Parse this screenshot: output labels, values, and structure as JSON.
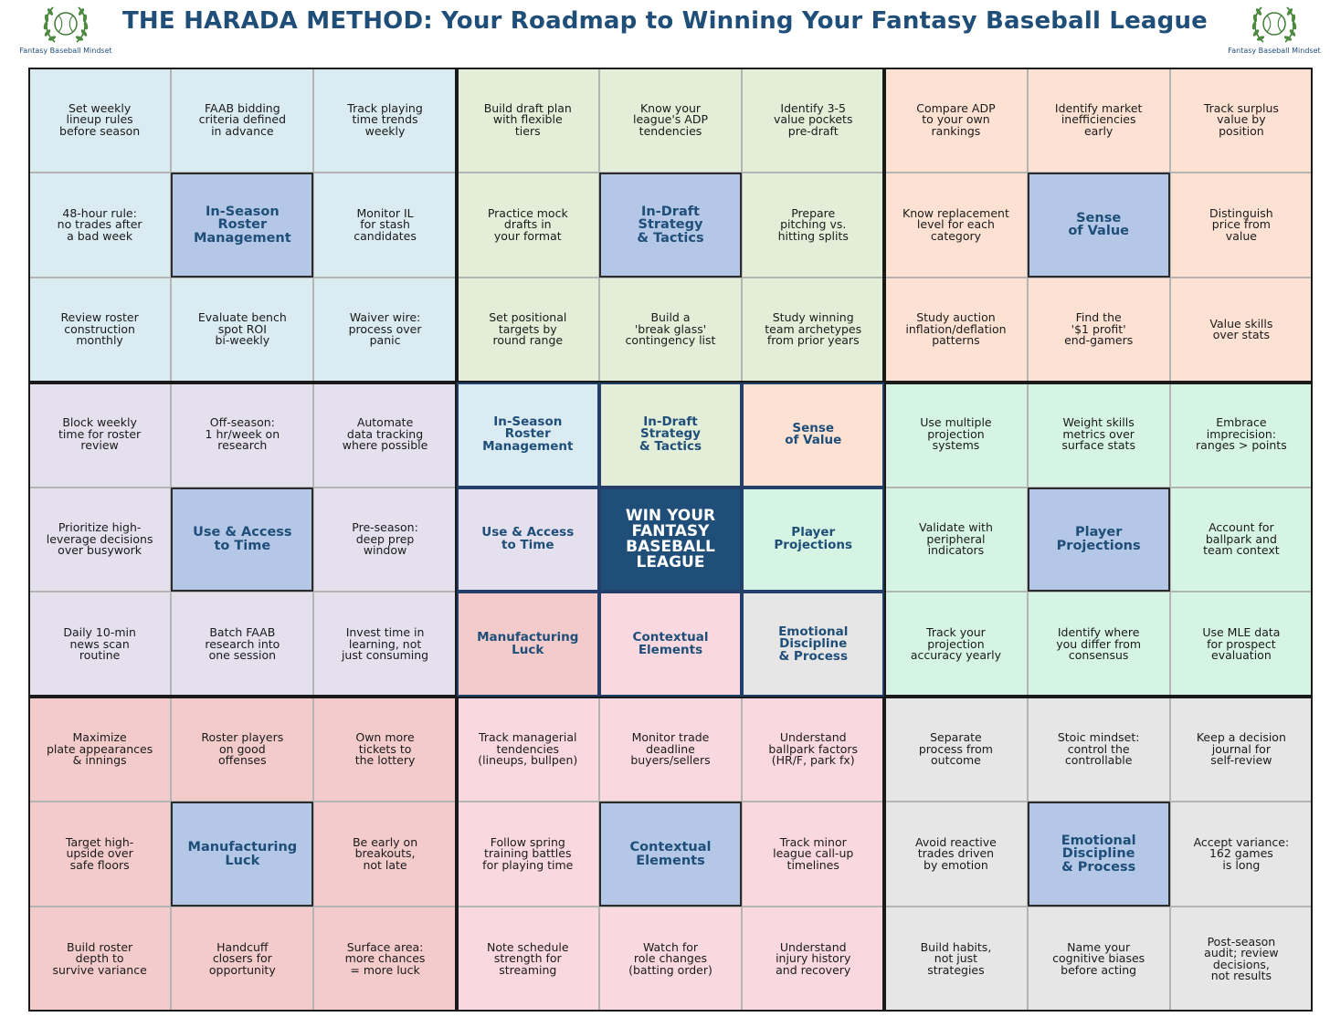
{
  "title": "THE HARADA METHOD: Your Roadmap to Winning Your Fantasy Baseball League",
  "logo": {
    "text": "Fantasy Baseball Mindset",
    "icon": "baseball-laurel-icon"
  },
  "colors": {
    "title": "#1f4e79",
    "goal_cell": "#b4c7e7",
    "main_goal": "#1f4e79",
    "roster": "#daebf2",
    "draft": "#e2eed8",
    "value": "#fde2d4",
    "time": "#e4e0ee",
    "projections": "#d6f4e3",
    "luck": "#f3cbcb",
    "contextual": "#f9d9df",
    "emotional": "#e6e6e6"
  },
  "grid": {
    "rows": [
      [
        "Set weekly\nlineup rules\nbefore season",
        "FAAB bidding\ncriteria defined\nin advance",
        "Track playing\ntime trends\nweekly",
        "Build draft plan\nwith flexible\ntiers",
        "Know your\nleague's ADP\ntendencies",
        "Identify 3-5\nvalue pockets\npre-draft",
        "Compare ADP\nto your own\nrankings",
        "Identify market\ninefficiencies\nearly",
        "Track surplus\nvalue by\nposition"
      ],
      [
        "48-hour rule:\nno trades after\na bad week",
        "In-Season\nRoster\nManagement",
        "Monitor IL\nfor stash\ncandidates",
        "Practice mock\ndrafts in\nyour format",
        "In-Draft\nStrategy\n& Tactics",
        "Prepare\npitching vs.\nhitting splits",
        "Know replacement\nlevel for each\ncategory",
        "Sense\nof Value",
        "Distinguish\nprice from\nvalue"
      ],
      [
        "Review roster\nconstruction\nmonthly",
        "Evaluate bench\nspot ROI\nbi-weekly",
        "Waiver wire:\nprocess over\npanic",
        "Set positional\ntargets by\nround range",
        "Build a\n'break glass'\ncontingency list",
        "Study winning\nteam archetypes\nfrom prior years",
        "Study auction\ninflation/deflation\npatterns",
        "Find the\n'$1 profit'\nend-gamers",
        "Value skills\nover stats"
      ],
      [
        "Block weekly\ntime for roster\nreview",
        "Off-season:\n1 hr/week on\nresearch",
        "Automate\ndata tracking\nwhere possible",
        "In-Season\nRoster\nManagement",
        "In-Draft\nStrategy\n& Tactics",
        "Sense\nof Value",
        "Use multiple\nprojection\nsystems",
        "Weight skills\nmetrics over\nsurface stats",
        "Embrace\nimprecision:\nranges > points"
      ],
      [
        "Prioritize high-\nleverage decisions\nover busywork",
        "Use & Access\nto Time",
        "Pre-season:\ndeep prep\nwindow",
        "Use & Access\nto Time",
        "WIN YOUR\nFANTASY\nBASEBALL\nLEAGUE",
        "Player\nProjections",
        "Validate with\nperipheral\nindicators",
        "Player\nProjections",
        "Account for\nballpark and\nteam context"
      ],
      [
        "Daily 10-min\nnews scan\nroutine",
        "Batch FAAB\nresearch into\none session",
        "Invest time in\nlearning, not\njust consuming",
        "Manufacturing\nLuck",
        "Contextual\nElements",
        "Emotional\nDiscipline\n& Process",
        "Track your\nprojection\naccuracy yearly",
        "Identify where\nyou differ from\nconsensus",
        "Use MLE data\nfor prospect\nevaluation"
      ],
      [
        "Maximize\nplate appearances\n& innings",
        "Roster players\non good\noffenses",
        "Own more\ntickets to\nthe lottery",
        "Track managerial\ntendencies\n(lineups, bullpen)",
        "Monitor trade\ndeadline\nbuyers/sellers",
        "Understand\nballpark factors\n(HR/F, park fx)",
        "Separate\nprocess from\noutcome",
        "Stoic mindset:\ncontrol the\ncontrollable",
        "Keep a decision\njournal for\nself-review"
      ],
      [
        "Target high-\nupside over\nsafe floors",
        "Manufacturing\nLuck",
        "Be early on\nbreakouts,\nnot late",
        "Follow spring\ntraining battles\nfor playing time",
        "Contextual\nElements",
        "Track minor\nleague call-up\ntimelines",
        "Avoid reactive\ntrades driven\nby emotion",
        "Emotional\nDiscipline\n& Process",
        "Accept variance:\n162 games\nis long"
      ],
      [
        "Build roster\ndepth to\nsurvive variance",
        "Handcuff\nclosers for\nopportunity",
        "Surface area:\nmore chances\n= more luck",
        "Note schedule\nstrength for\nstreaming",
        "Watch for\nrole changes\n(batting order)",
        "Understand\ninjury history\nand recovery",
        "Build habits,\nnot just\nstrategies",
        "Name your\ncognitive biases\nbefore acting",
        "Post-season\naudit; review\ndecisions,\nnot results"
      ]
    ]
  }
}
